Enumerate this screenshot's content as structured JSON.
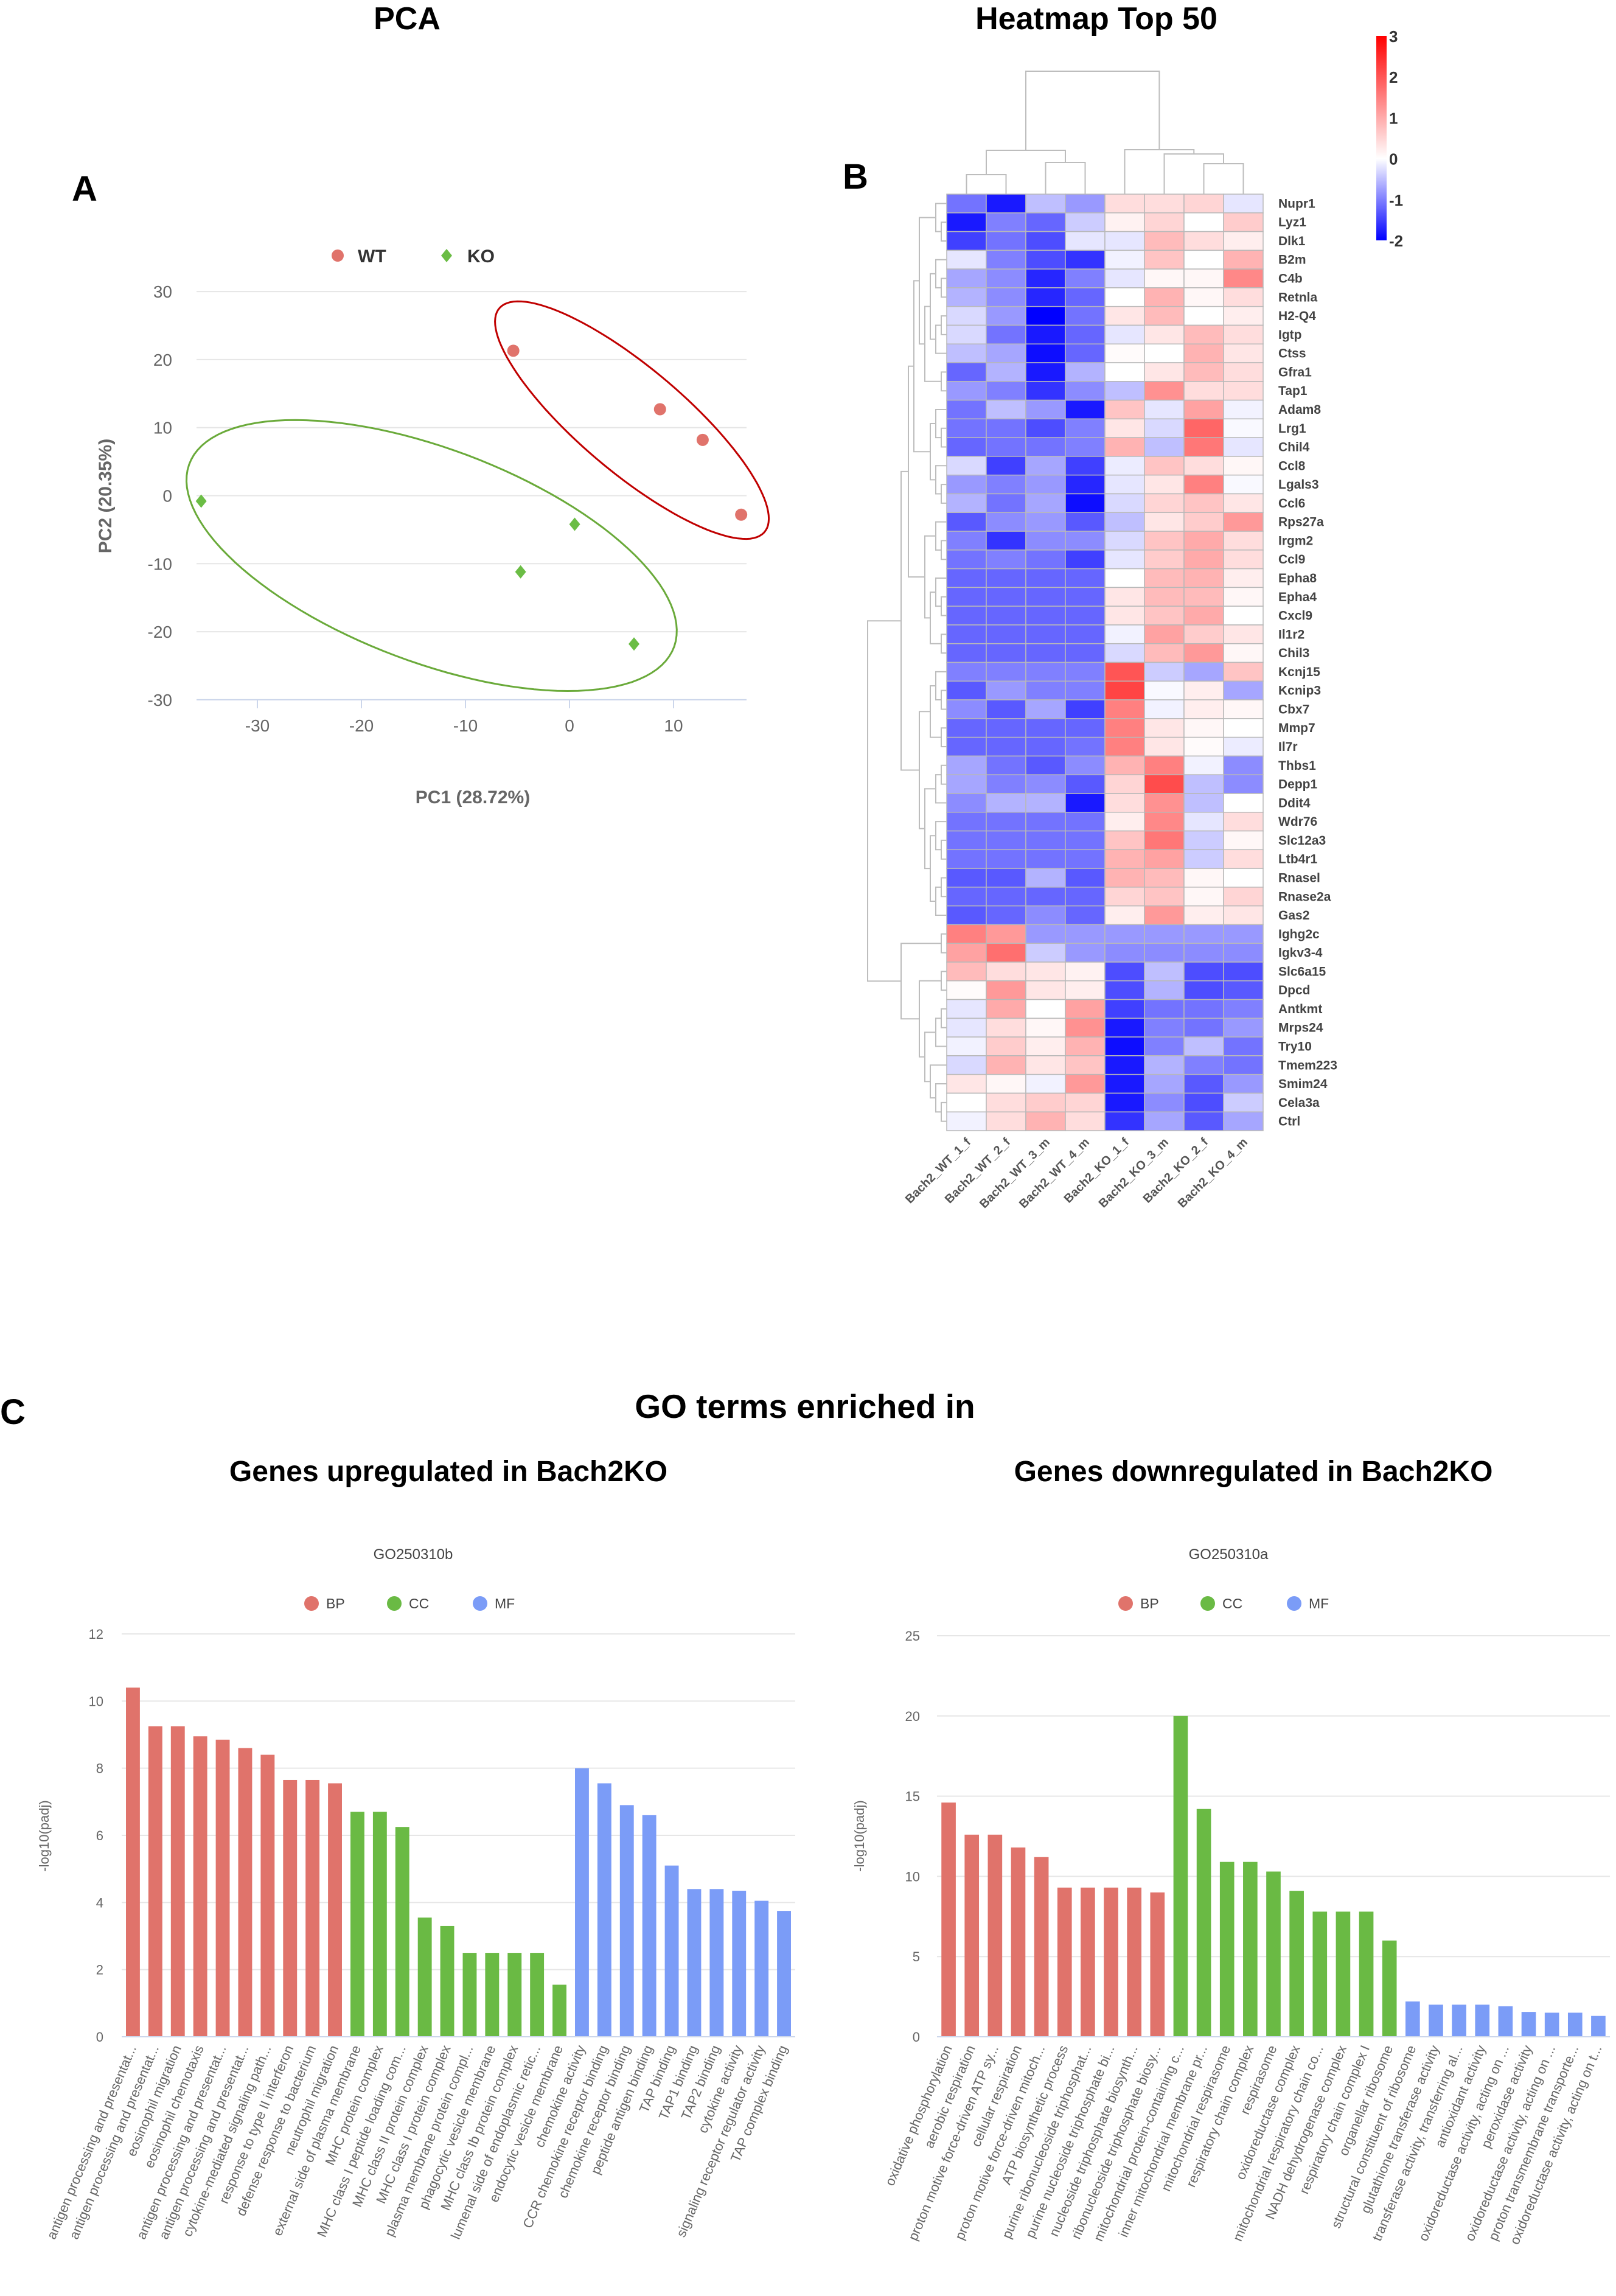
{
  "panels": {
    "a_label": "A",
    "b_label": "B",
    "c_label": "C"
  },
  "section_c_title": "GO terms enriched in",
  "colors": {
    "WT": "#e0736b",
    "KO": "#6bbd45",
    "WT_ellipse": "#c00000",
    "KO_ellipse": "#6aaa3a",
    "BP": "#e0736b",
    "CC": "#6aba44",
    "MF": "#7b9cf7"
  },
  "chart_data": [
    {
      "type": "scatter",
      "title": "PCA",
      "xlabel": "PC1 (28.72%)",
      "ylabel": "PC2 (20.35%)",
      "xlim": [
        -36,
        17
      ],
      "ylim": [
        -30,
        30
      ],
      "xticks": [
        -30,
        -20,
        -10,
        0,
        10
      ],
      "yticks": [
        30,
        20,
        10,
        0,
        -10,
        -20,
        -30
      ],
      "grid": true,
      "legend": "top-center",
      "series": [
        {
          "name": "WT",
          "marker": "circle",
          "points": [
            [
              -5.4,
              21.3
            ],
            [
              8.7,
              12.7
            ],
            [
              12.8,
              8.2
            ],
            [
              16.5,
              -2.8
            ]
          ]
        },
        {
          "name": "KO",
          "marker": "diamond",
          "points": [
            [
              -35.4,
              -0.8
            ],
            [
              0.5,
              -4.2
            ],
            [
              -4.7,
              -11.2
            ],
            [
              6.2,
              -21.8
            ]
          ]
        }
      ]
    },
    {
      "type": "heatmap",
      "title": "Heatmap Top 50",
      "columns": [
        "Bach2_WT_1_f",
        "Bach2_WT_2_f",
        "Bach2_WT_3_m",
        "Bach2_WT_4_m",
        "Bach2_KO_1_f",
        "Bach2_KO_3_m",
        "Bach2_KO_2_f",
        "Bach2_KO_4_m"
      ],
      "colorbar": {
        "min": -2,
        "max": 3,
        "ticks": [
          "3",
          "2",
          "1",
          "0",
          "-1",
          "-2"
        ]
      },
      "rows": [
        "Nupr1",
        "Lyz1",
        "Dlk1",
        "B2m",
        "C4b",
        "Retnla",
        "H2-Q4",
        "Igtp",
        "Ctss",
        "Gfra1",
        "Tap1",
        "Adam8",
        "Lrg1",
        "Chil4",
        "Ccl8",
        "Lgals3",
        "Ccl6",
        "Rps27a",
        "Irgm2",
        "Ccl9",
        "Epha8",
        "Epha4",
        "Cxcl9",
        "Il1r2",
        "Chil3",
        "Kcnj15",
        "Kcnip3",
        "Cbx7",
        "Mmp7",
        "Il7r",
        "Thbs1",
        "Depp1",
        "Ddit4",
        "Wdr76",
        "Slc12a3",
        "Ltb4r1",
        "Rnasel",
        "Rnase2a",
        "Gas2",
        "Ighg2c",
        "Igkv3-4",
        "Slc6a15",
        "Dpcd",
        "Antkmt",
        "Mrps24",
        "Try10",
        "Tmem223",
        "Smim24",
        "Cela3a",
        "Ctrl"
      ],
      "values": [
        [
          -1.1,
          -1.8,
          -0.5,
          -0.8,
          0.4,
          0.4,
          0.5,
          -0.2
        ],
        [
          -1.8,
          -1.0,
          -1.2,
          -0.4,
          0.15,
          0.5,
          0,
          0.6
        ],
        [
          -1.5,
          -1.1,
          -1.4,
          -0.2,
          -0.2,
          0.8,
          0.4,
          0.2
        ],
        [
          -0.2,
          -1.0,
          -1.4,
          -1.6,
          -0.1,
          0.7,
          0,
          0.9
        ],
        [
          -0.7,
          -0.9,
          -1.7,
          -1.0,
          -0.2,
          0.1,
          0.1,
          1.4
        ],
        [
          -0.6,
          -0.9,
          -1.7,
          -1.2,
          0,
          0.9,
          0.1,
          0.4
        ],
        [
          -0.3,
          -0.8,
          -2.0,
          -1.1,
          0.3,
          0.8,
          0,
          0.2
        ],
        [
          -0.3,
          -1.1,
          -1.8,
          -1.2,
          -0.2,
          0.3,
          0.8,
          0.4
        ],
        [
          -0.5,
          -0.7,
          -1.9,
          -1.2,
          0.05,
          0,
          0.9,
          0.3
        ],
        [
          -1.2,
          -0.6,
          -1.8,
          -0.6,
          0,
          0.3,
          0.8,
          0.4
        ],
        [
          -0.8,
          -1.0,
          -1.6,
          -0.9,
          -0.5,
          1.3,
          0.4,
          0.4
        ],
        [
          -1.1,
          -0.5,
          -0.8,
          -1.8,
          0.7,
          -0.2,
          1.1,
          -0.1
        ],
        [
          -1.1,
          -1.1,
          -1.4,
          -1.0,
          0.3,
          -0.3,
          1.8,
          -0.05
        ],
        [
          -1.2,
          -1.1,
          -1.1,
          -1.0,
          0.9,
          -0.5,
          1.6,
          -0.2
        ],
        [
          -0.3,
          -1.5,
          -0.7,
          -1.5,
          -0.15,
          0.7,
          0.4,
          0.1
        ],
        [
          -0.8,
          -1.0,
          -0.8,
          -1.7,
          -0.2,
          0.3,
          1.5,
          -0.05
        ],
        [
          -0.6,
          -1.1,
          -0.7,
          -1.9,
          -0.3,
          0.5,
          0.7,
          0.3
        ],
        [
          -1.3,
          -0.9,
          -0.8,
          -1.3,
          -0.5,
          0.3,
          0.6,
          1.2
        ],
        [
          -1.0,
          -1.6,
          -0.9,
          -0.9,
          -0.3,
          0.7,
          1.0,
          0.4
        ],
        [
          -1.1,
          -1.0,
          -1.1,
          -1.5,
          -0.2,
          0.6,
          1.0,
          0.4
        ],
        [
          -1.2,
          -1.2,
          -1.2,
          -1.2,
          0,
          0.8,
          0.9,
          0.2
        ],
        [
          -1.2,
          -1.2,
          -1.2,
          -1.2,
          0.3,
          0.8,
          0.8,
          0.1
        ],
        [
          -1.2,
          -1.2,
          -1.2,
          -1.2,
          0.3,
          0.7,
          1.0,
          0
        ],
        [
          -1.2,
          -1.2,
          -1.2,
          -1.2,
          -0.1,
          1.1,
          0.6,
          0.3
        ],
        [
          -1.2,
          -1.2,
          -1.2,
          -1.2,
          -0.3,
          0.8,
          1.2,
          0.1
        ],
        [
          -1.0,
          -1.0,
          -1.0,
          -1.0,
          2.0,
          -0.4,
          -0.7,
          0.7
        ],
        [
          -1.3,
          -0.8,
          -1.0,
          -1.0,
          2.2,
          -0.05,
          0.2,
          -0.7
        ],
        [
          -0.9,
          -1.3,
          -0.7,
          -1.5,
          1.5,
          -0.1,
          0.2,
          0.1
        ],
        [
          -1.2,
          -1.2,
          -1.2,
          -1.2,
          1.5,
          0.3,
          0.1,
          0
        ],
        [
          -1.2,
          -1.2,
          -1.2,
          -1.1,
          1.5,
          0.3,
          0.05,
          -0.15
        ],
        [
          -0.7,
          -1.1,
          -1.3,
          -0.9,
          0.9,
          1.5,
          -0.1,
          -0.9
        ],
        [
          -0.7,
          -1.0,
          -0.9,
          -1.3,
          0.5,
          2.1,
          -0.5,
          -0.9
        ],
        [
          -0.9,
          -0.6,
          -0.6,
          -1.8,
          0.4,
          1.3,
          -0.5,
          0
        ],
        [
          -1.1,
          -1.1,
          -1.1,
          -1.1,
          0.2,
          1.4,
          -0.2,
          0.4
        ],
        [
          -1.1,
          -1.1,
          -1.1,
          -1.1,
          0.7,
          1.6,
          -0.4,
          0.1
        ],
        [
          -1.1,
          -1.1,
          -1.1,
          -1.1,
          0.9,
          1.1,
          -0.4,
          0.4
        ],
        [
          -1.3,
          -1.3,
          -0.6,
          -1.3,
          0.9,
          0.8,
          0.1,
          0
        ],
        [
          -1.2,
          -1.2,
          -1.2,
          -1.2,
          0.5,
          0.7,
          0.1,
          0.5
        ],
        [
          -1.3,
          -1.2,
          -0.9,
          -1.2,
          0.2,
          1.2,
          0.2,
          0.3
        ],
        [
          1.5,
          1.2,
          -0.8,
          -0.8,
          -0.8,
          -0.8,
          -0.8,
          -0.8
        ],
        [
          1.1,
          1.7,
          -0.4,
          -0.8,
          -0.9,
          -0.9,
          -0.9,
          -0.9
        ],
        [
          0.8,
          0.4,
          0.3,
          0.15,
          -1.4,
          -0.5,
          -1.4,
          -1.4
        ],
        [
          0.05,
          1.2,
          0.3,
          0.2,
          -1.4,
          -0.6,
          -1.4,
          -1.3
        ],
        [
          -0.2,
          1.0,
          0,
          1.1,
          -1.5,
          -1.1,
          -1.1,
          -1.0
        ],
        [
          -0.2,
          0.4,
          0.1,
          1.3,
          -1.8,
          -1.0,
          -1.1,
          -0.8
        ],
        [
          -0.1,
          0.6,
          0.2,
          0.9,
          -1.9,
          -1.0,
          -0.5,
          -1.1
        ],
        [
          -0.3,
          0.9,
          0.3,
          0.7,
          -1.8,
          -0.6,
          -1.0,
          -1.1
        ],
        [
          0.3,
          0.1,
          -0.1,
          1.2,
          -1.8,
          -0.7,
          -1.3,
          -0.8
        ],
        [
          0,
          0.4,
          0.6,
          0.5,
          -1.8,
          -0.9,
          -1.4,
          -0.4
        ],
        [
          -0.1,
          0.4,
          0.9,
          0.4,
          -1.6,
          -0.7,
          -1.3,
          -0.7
        ]
      ]
    },
    {
      "type": "bar",
      "heading": "Genes upregulated in Bach2KO",
      "title": "GO250310b",
      "xlabel": "",
      "ylabel": "-log10(padj)",
      "ylim": [
        0,
        12
      ],
      "yticks": [
        0,
        2,
        4,
        6,
        8,
        10,
        12
      ],
      "legend": [
        "BP",
        "CC",
        "MF"
      ],
      "legend_position": "top-center",
      "categories": [
        {
          "label": "antigen processing and presentat...",
          "group": "BP",
          "value": 10.4
        },
        {
          "label": "antigen processing and presentat...",
          "group": "BP",
          "value": 9.25
        },
        {
          "label": "eosinophil migration",
          "group": "BP",
          "value": 9.25
        },
        {
          "label": "eosinophil chemotaxis",
          "group": "BP",
          "value": 8.95
        },
        {
          "label": "antigen processing and presentat...",
          "group": "BP",
          "value": 8.85
        },
        {
          "label": "antigen processing and presentat...",
          "group": "BP",
          "value": 8.6
        },
        {
          "label": "cytokine-mediated signaling path...",
          "group": "BP",
          "value": 8.4
        },
        {
          "label": "response to type II interferon",
          "group": "BP",
          "value": 7.65
        },
        {
          "label": "defense response to bacterium",
          "group": "BP",
          "value": 7.65
        },
        {
          "label": "neutrophil migration",
          "group": "BP",
          "value": 7.55
        },
        {
          "label": "external side of plasma membrane",
          "group": "CC",
          "value": 6.7
        },
        {
          "label": "MHC protein complex",
          "group": "CC",
          "value": 6.7
        },
        {
          "label": "MHC class I peptide loading com...",
          "group": "CC",
          "value": 6.25
        },
        {
          "label": "MHC class II protein complex",
          "group": "CC",
          "value": 3.55
        },
        {
          "label": "MHC class I protein complex",
          "group": "CC",
          "value": 3.3
        },
        {
          "label": "plasma membrane protein compl...",
          "group": "CC",
          "value": 2.5
        },
        {
          "label": "phagocytic vesicle membrane",
          "group": "CC",
          "value": 2.5
        },
        {
          "label": "MHC class Ib protein complex",
          "group": "CC",
          "value": 2.5
        },
        {
          "label": "lumenal side of endoplasmic retic...",
          "group": "CC",
          "value": 2.5
        },
        {
          "label": "endocytic vesicle membrane",
          "group": "CC",
          "value": 1.55
        },
        {
          "label": "chemokine activity",
          "group": "MF",
          "value": 8.0
        },
        {
          "label": "CCR chemokine receptor binding",
          "group": "MF",
          "value": 7.55
        },
        {
          "label": "chemokine receptor binding",
          "group": "MF",
          "value": 6.9
        },
        {
          "label": "peptide antigen binding",
          "group": "MF",
          "value": 6.6
        },
        {
          "label": "TAP binding",
          "group": "MF",
          "value": 5.1
        },
        {
          "label": "TAP1 binding",
          "group": "MF",
          "value": 4.4
        },
        {
          "label": "TAP2 binding",
          "group": "MF",
          "value": 4.4
        },
        {
          "label": "cytokine activity",
          "group": "MF",
          "value": 4.35
        },
        {
          "label": "signaling receptor regulator activity",
          "group": "MF",
          "value": 4.05
        },
        {
          "label": "TAP complex binding",
          "group": "MF",
          "value": 3.75
        }
      ]
    },
    {
      "type": "bar",
      "heading": "Genes downregulated in Bach2KO",
      "title": "GO250310a",
      "xlabel": "",
      "ylabel": "-log10(padj)",
      "ylim": [
        0,
        25
      ],
      "yticks": [
        0,
        5,
        10,
        15,
        20,
        25
      ],
      "legend": [
        "BP",
        "CC",
        "MF"
      ],
      "legend_position": "top-center",
      "categories": [
        {
          "label": "oxidative phosphorylation",
          "group": "BP",
          "value": 14.6
        },
        {
          "label": "aerobic respiration",
          "group": "BP",
          "value": 12.6
        },
        {
          "label": "proton motive force-driven ATP sy...",
          "group": "BP",
          "value": 12.6
        },
        {
          "label": "cellular respiration",
          "group": "BP",
          "value": 11.8
        },
        {
          "label": "proton motive force-driven mitoch...",
          "group": "BP",
          "value": 11.2
        },
        {
          "label": "ATP biosynthetic process",
          "group": "BP",
          "value": 9.3
        },
        {
          "label": "purine ribonucleoside triphosphat...",
          "group": "BP",
          "value": 9.3
        },
        {
          "label": "purine nucleoside triphosphate bi...",
          "group": "BP",
          "value": 9.3
        },
        {
          "label": "nucleoside triphosphate biosynth...",
          "group": "BP",
          "value": 9.3
        },
        {
          "label": "ribonucleoside triphosphate biosy...",
          "group": "BP",
          "value": 9.0
        },
        {
          "label": "mitochondrial protein-containing c...",
          "group": "CC",
          "value": 20.0
        },
        {
          "label": "inner mitochondrial membrane pr...",
          "group": "CC",
          "value": 14.2
        },
        {
          "label": "mitochondrial respirasome",
          "group": "CC",
          "value": 10.9
        },
        {
          "label": "respiratory chain complex",
          "group": "CC",
          "value": 10.9
        },
        {
          "label": "respirasome",
          "group": "CC",
          "value": 10.3
        },
        {
          "label": "oxidoreductase complex",
          "group": "CC",
          "value": 9.1
        },
        {
          "label": "mitochondrial respiratory chain co...",
          "group": "CC",
          "value": 7.8
        },
        {
          "label": "NADH dehydrogenase complex",
          "group": "CC",
          "value": 7.8
        },
        {
          "label": "respiratory chain complex I",
          "group": "CC",
          "value": 7.8
        },
        {
          "label": "organellar ribosome",
          "group": "CC",
          "value": 6.0
        },
        {
          "label": "structural constituent of ribosome",
          "group": "MF",
          "value": 2.2
        },
        {
          "label": "glutathione transferase activity",
          "group": "MF",
          "value": 2.0
        },
        {
          "label": "transferase activity, transferring al...",
          "group": "MF",
          "value": 2.0
        },
        {
          "label": "antioxidant activity",
          "group": "MF",
          "value": 2.0
        },
        {
          "label": "oxidoreductase activity, acting on ...",
          "group": "MF",
          "value": 1.9
        },
        {
          "label": "peroxidase activity",
          "group": "MF",
          "value": 1.55
        },
        {
          "label": "oxidoreductase activity, acting on ...",
          "group": "MF",
          "value": 1.5
        },
        {
          "label": "proton transmembrane transporte...",
          "group": "MF",
          "value": 1.5
        },
        {
          "label": "oxidoreductase activity, acting on t...",
          "group": "MF",
          "value": 1.3
        }
      ]
    }
  ]
}
